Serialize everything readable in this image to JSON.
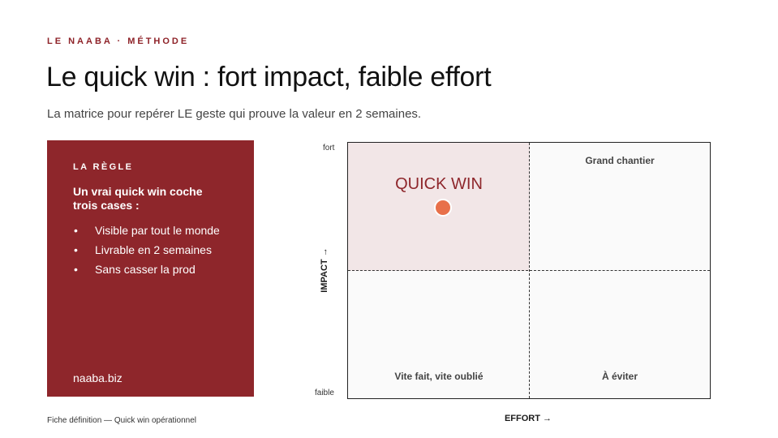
{
  "header": {
    "kicker": "LE NAABA · MÉTHODE",
    "title": "Le quick win : fort impact, faible effort",
    "subtitle": "La matrice pour repérer LE geste qui prouve la valeur en 2 semaines."
  },
  "rule_card": {
    "label": "LA RÈGLE",
    "heading": "Un vrai quick win coche trois cases :",
    "items": [
      "Visible par tout le monde",
      "Livrable en 2 semaines",
      "Sans casser la prod"
    ],
    "site": "naaba.biz",
    "background_color": "#8e262b"
  },
  "matrix": {
    "y_axis_label": "IMPACT →",
    "x_axis_label": "EFFORT →",
    "y_high": "fort",
    "y_low": "faible",
    "quadrants": {
      "top_left": "QUICK WIN",
      "top_right": "Grand chantier",
      "bottom_left": "Vite fait, vite oublié",
      "bottom_right": "À éviter"
    },
    "marker_color": "#e8704a",
    "highlight_color": "#f2e6e7"
  },
  "footer": {
    "note": "Fiche définition — Quick win opérationnel"
  }
}
